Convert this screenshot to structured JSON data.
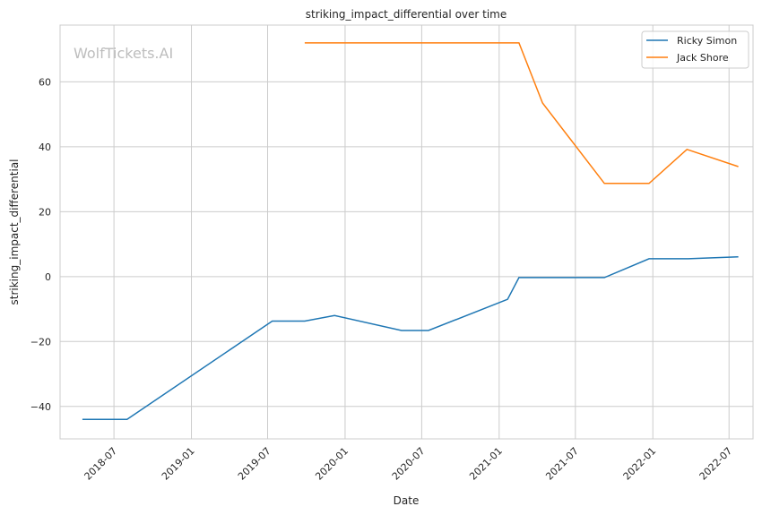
{
  "chart_data": {
    "type": "line",
    "title": "striking_impact_differential over time",
    "xlabel": "Date",
    "ylabel": "striking_impact_differential",
    "watermark": "WolfTickets.AI",
    "xlim": [
      "2018-02-23",
      "2022-08-27"
    ],
    "ylim": [
      -50,
      77.5
    ],
    "yticks": [
      -40,
      -20,
      0,
      20,
      40,
      60
    ],
    "xticks": [
      "2018-07",
      "2019-01",
      "2019-07",
      "2020-01",
      "2020-07",
      "2021-01",
      "2021-07",
      "2022-01",
      "2022-07"
    ],
    "grid": true,
    "legend_position": "top-right",
    "series": [
      {
        "name": "Ricky Simon",
        "color": "#1f77b4",
        "x": [
          "2018-04-17",
          "2018-08-01",
          "2019-07-12",
          "2019-09-27",
          "2019-12-07",
          "2020-05-14",
          "2020-07-17",
          "2021-01-21",
          "2021-02-17",
          "2021-09-08",
          "2021-12-23",
          "2022-03-26",
          "2022-07-23"
        ],
        "y": [
          -44,
          -44,
          -13.7,
          -13.7,
          -12,
          -16.6,
          -16.6,
          -7,
          -0.3,
          -0.3,
          5.5,
          5.5,
          6.1
        ]
      },
      {
        "name": "Jack Shore",
        "color": "#ff7f0e",
        "x": [
          "2019-09-27",
          "2021-02-17",
          "2021-04-14",
          "2021-09-08",
          "2021-12-23",
          "2022-03-23",
          "2022-07-23"
        ],
        "y": [
          72,
          72,
          53.5,
          28.7,
          28.7,
          39.2,
          33.9
        ]
      }
    ]
  }
}
